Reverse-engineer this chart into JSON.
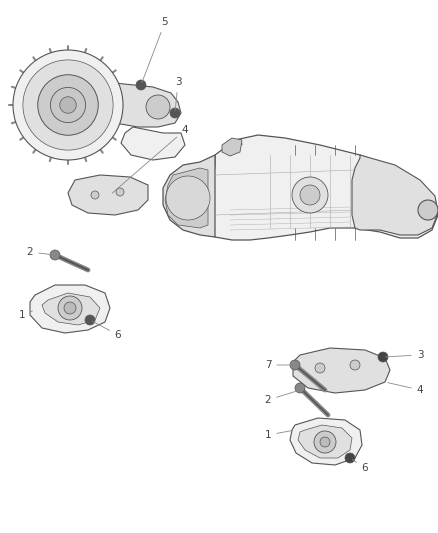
{
  "bg_color": "#ffffff",
  "figsize": [
    4.39,
    5.33
  ],
  "dpi": 100,
  "text_color": "#444444",
  "line_color": "#555555",
  "light_fill": "#f0f0f0",
  "mid_fill": "#e0e0e0",
  "dark_fill": "#cccccc",
  "lw_main": 0.7,
  "lw_thick": 1.0,
  "font_size": 7.5,
  "label_color": "#555555",
  "arrow_color": "#888888"
}
